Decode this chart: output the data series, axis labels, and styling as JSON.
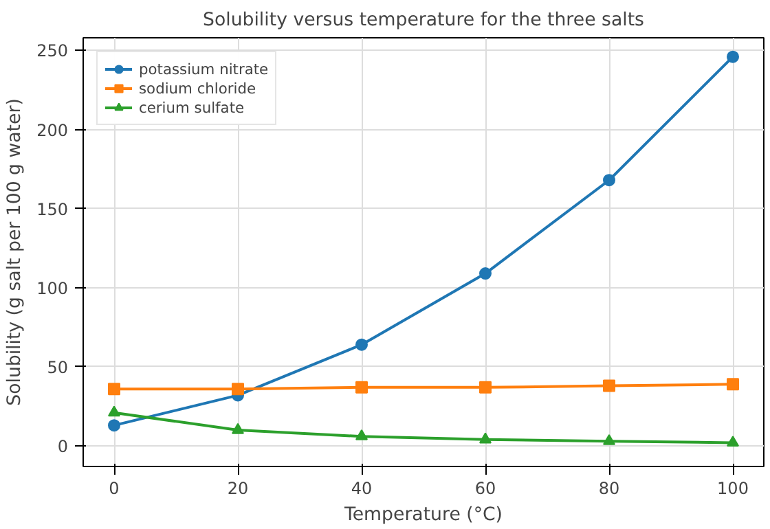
{
  "chart_data": {
    "type": "line",
    "title": "Solubility versus temperature for the three salts",
    "xlabel": "Temperature (°C)",
    "ylabel": "Solubility (g salt per 100 g water)",
    "x": [
      0,
      20,
      40,
      60,
      80,
      100
    ],
    "series": [
      {
        "name": "potassium nitrate",
        "color": "#1f77b4",
        "marker": "circle",
        "values": [
          13,
          32,
          64,
          109,
          168,
          246
        ]
      },
      {
        "name": "sodium chloride",
        "color": "#ff7f0e",
        "marker": "square",
        "values": [
          36,
          36,
          37,
          37,
          38,
          39
        ]
      },
      {
        "name": "cerium sulfate",
        "color": "#2ca02c",
        "marker": "triangle",
        "values": [
          21,
          10,
          6,
          4,
          3,
          2
        ]
      }
    ],
    "xlim": [
      -5,
      105
    ],
    "ylim": [
      -13,
      258
    ],
    "xticks": [
      0,
      20,
      40,
      60,
      80,
      100
    ],
    "yticks": [
      0,
      50,
      100,
      150,
      200,
      250
    ],
    "grid": true,
    "legend": "top left",
    "line_style": "solid"
  }
}
